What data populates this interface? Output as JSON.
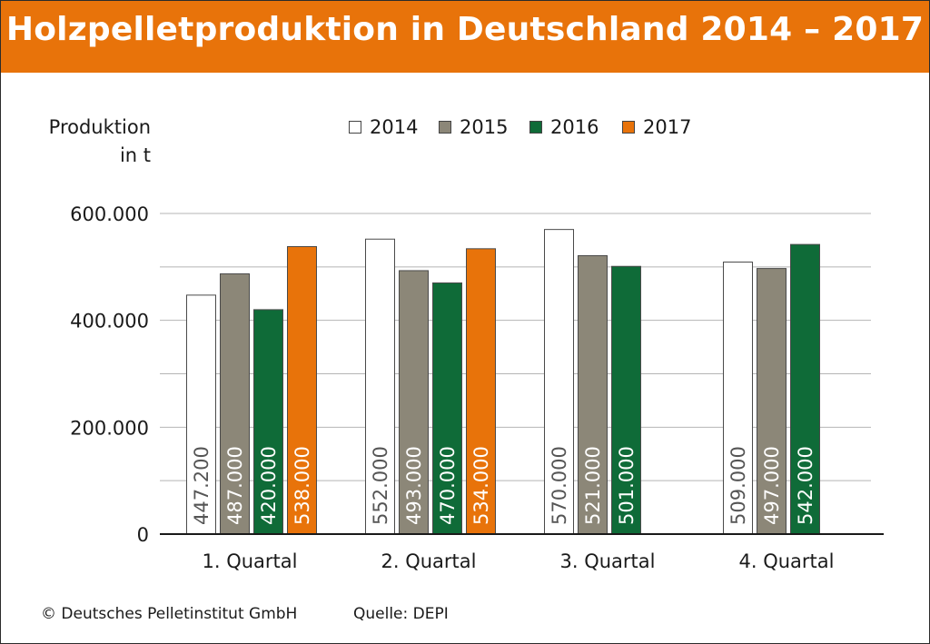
{
  "header": {
    "title": "Holzpelletproduktion in Deutschland 2014 – 2017"
  },
  "axis": {
    "ylabel_line1": "Produktion",
    "ylabel_line2": "in t"
  },
  "footer": {
    "copyright": "© Deutsches Pelletinstitut GmbH",
    "source": "Quelle: DEPI"
  },
  "colors": {
    "header": "#e8730a",
    "s2014": "#ffffff",
    "s2015": "#8c8778",
    "s2016": "#0f6b38",
    "s2017": "#e8730a",
    "grid": "#b5b5b5"
  },
  "chart_data": {
    "type": "bar",
    "title": "Holzpelletproduktion in Deutschland 2014 – 2017",
    "ylabel": "Produktion in t",
    "categories": [
      "1. Quartal",
      "2. Quartal",
      "3. Quartal",
      "4. Quartal"
    ],
    "ylim": [
      0,
      600000
    ],
    "yticks": [
      0,
      200000,
      400000,
      600000
    ],
    "ytick_labels": [
      "0",
      "200.000",
      "400.000",
      "600.000"
    ],
    "grid": true,
    "legend_position": "top",
    "series": [
      {
        "name": "2014",
        "color": "#ffffff",
        "values": [
          447200,
          552000,
          570000,
          509000
        ],
        "labels": [
          "447.200",
          "552.000",
          "570.000",
          "509.000"
        ]
      },
      {
        "name": "2015",
        "color": "#8c8778",
        "values": [
          487000,
          493000,
          521000,
          497000
        ],
        "labels": [
          "487.000",
          "493.000",
          "521.000",
          "497.000"
        ]
      },
      {
        "name": "2016",
        "color": "#0f6b38",
        "values": [
          420000,
          470000,
          501000,
          542000
        ],
        "labels": [
          "420.000",
          "470.000",
          "501.000",
          "542.000"
        ]
      },
      {
        "name": "2017",
        "color": "#e8730a",
        "values": [
          538000,
          534000,
          null,
          null
        ],
        "labels": [
          "538.000",
          "534.000",
          "",
          ""
        ]
      }
    ]
  }
}
